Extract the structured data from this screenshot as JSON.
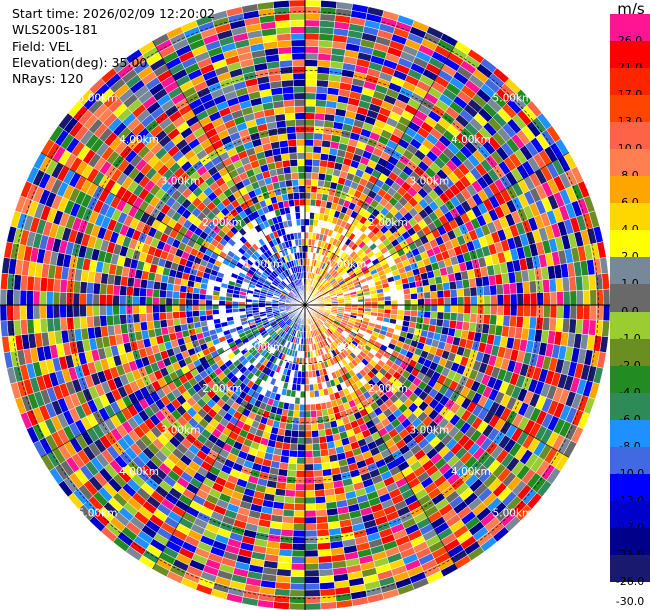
{
  "header": {
    "start_time": "Start time: 2026/02/09 12:20:02",
    "instrument": "WLS200s-181",
    "field": "Field: VEL",
    "elevation": "Elevation(deg): 35.00",
    "nrays": "NRays: 120"
  },
  "colorbar": {
    "unit": "m/s",
    "segments": [
      {
        "label": "26.0",
        "color": "#ff1493"
      },
      {
        "label": "21.0",
        "color": "#ff0000"
      },
      {
        "label": "17.0",
        "color": "#ff2400"
      },
      {
        "label": "13.0",
        "color": "#ff4500"
      },
      {
        "label": "10.0",
        "color": "#ff6347"
      },
      {
        "label": "8.0",
        "color": "#ff7f50"
      },
      {
        "label": "6.0",
        "color": "#ffa500"
      },
      {
        "label": "4.0",
        "color": "#ffd700"
      },
      {
        "label": "2.0",
        "color": "#ffff00"
      },
      {
        "label": "1.0",
        "color": "#778899"
      },
      {
        "label": "0.0",
        "color": "#696969"
      },
      {
        "label": "-1.0",
        "color": "#9acd32"
      },
      {
        "label": "-2.0",
        "color": "#6b8e23"
      },
      {
        "label": "-4.0",
        "color": "#228b22"
      },
      {
        "label": "-6.0",
        "color": "#2e8b57"
      },
      {
        "label": "-8.0",
        "color": "#1e90ff"
      },
      {
        "label": "-10.0",
        "color": "#4169e1"
      },
      {
        "label": "-13.0",
        "color": "#0000ff"
      },
      {
        "label": "-17.0",
        "color": "#0000cd"
      },
      {
        "label": "-21.0",
        "color": "#00008b"
      },
      {
        "label": "-26.0",
        "color": "#191970"
      },
      {
        "label": "-30.0",
        "color": "#ffffff"
      }
    ]
  },
  "chart_data": {
    "type": "heatmap",
    "projection": "polar (PPI)",
    "field": "VEL",
    "elevation_deg": 35.0,
    "n_rays": 120,
    "range_rings_km": [
      1.0,
      2.0,
      3.0,
      4.0,
      5.0
    ],
    "ring_labels": [
      "1.00km",
      "2.00km",
      "3.00km",
      "4.00km",
      "5.00km"
    ],
    "max_range_km": 5.2,
    "radial_lines_deg": [
      0,
      30,
      60,
      90,
      120,
      150,
      180,
      210,
      240,
      270,
      300,
      330
    ],
    "near_field_pattern": [
      {
        "sector_deg": [
          0,
          180
        ],
        "typical_velocity_ms": 4.0,
        "range_km": [
          0,
          2.0
        ]
      },
      {
        "sector_deg": [
          180,
          360
        ],
        "typical_velocity_ms": -13.0,
        "range_km": [
          0,
          2.0
        ]
      }
    ],
    "far_field": "noise (random values across full scale)",
    "value_range_ms": [
      -30.0,
      30.0
    ]
  }
}
